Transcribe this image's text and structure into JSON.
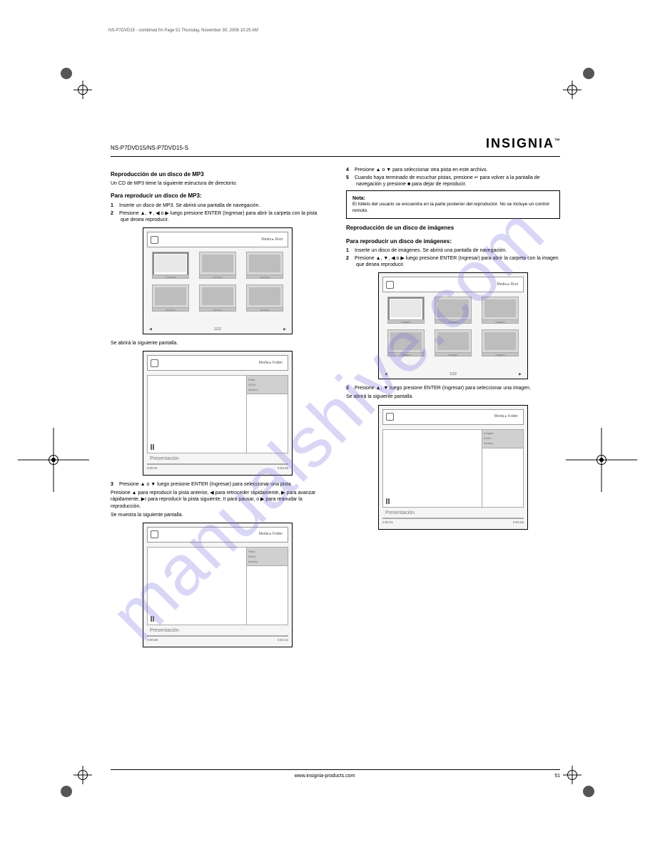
{
  "header": {
    "model": "NS-P7DVD15/NS-P7DVD15-S",
    "brand": "INSIGNIA",
    "tm": "™"
  },
  "topnotes": {
    "file": "NS-P7DVD15 - combined.fm  Page 51  Thursday, November 30, 2006  10:25 AM",
    "right": ""
  },
  "L": {
    "s1h": "Reproducción de un disco de MP3",
    "s1p1": "Un CD de MP3 tiene la siguiente estructura de directorio:",
    "s1t": "Para reproducir un disco de MP3:",
    "s1n1a": "Inserte un disco de MP3. Se abrirá una pantalla de navegación.",
    "s1n1b": "Presione ▲, ▼, ◀ o ▶ luego presione ENTER (Ingresar) para abrir la carpeta con la pista que desea reproducir.",
    "s2p1": "Se abrirá la siguiente pantalla.",
    "s2h": "",
    "s2n3": "Presione ▲ o ▼ luego presione ENTER (Ingresar) para seleccionar una pista.",
    "s2p2": "Presione ▲ para reproducir la pista anterior, ◀ para retroceder rápidamente, ▶ para avanzar rápidamente, ▶I para reproducir la pista siguiente, II para pausar, o ▶ para reanudar la reproducción.",
    "s2p3": "Se muestra la siguiente pantalla."
  },
  "R": {
    "s3n4": "Presione ▲ o ▼ para seleccionar otra pista en este archivo.",
    "s3n5": "Cuando haya terminado de escuchar pistas, presione ↵ para volver a la pantalla de navegación y presione ■ para dejar de reproducir.",
    "notelabel": "Nota:",
    "note": "El folleto del usuario se encuentra en la parte posterior del reproductor. No se incluye un control remoto.",
    "s4h": "Reproducción de un disco de imágenes",
    "s4t": "Para reproducir un disco de imágenes:",
    "s4n1a": "Inserte un disco de imágenes. Se abrirá una pantalla de navegación.",
    "s4n1b": "Presione ▲, ▼, ◀ o ▶ luego presione ENTER (Ingresar) para abrir la carpeta con la imagen que desea reproducir.",
    "s4n3": "Presione ▲, ▼ luego presione ENTER (Ingresar) para seleccionar una imagen.",
    "s4p1": "Se abrirá la siguiente pantalla."
  },
  "panel1": {
    "toolbar_label": "Media ▸ Root",
    "pager_left": "◀",
    "pager_right": "▶",
    "pager_mid": "1/22",
    "thumbs": [
      {
        "label": "Carpeta",
        "sel": true
      },
      {
        "label": "Archivo",
        "sel": false
      },
      {
        "label": "Archivo",
        "sel": false
      },
      {
        "label": "Archivo",
        "sel": false
      },
      {
        "label": "Archivo",
        "sel": false
      },
      {
        "label": "Archivo",
        "sel": false
      }
    ]
  },
  "panel2": {
    "toolbar_label": "Media ▸ Folder",
    "meta_lines": [
      "Pista:",
      "02/24",
      "Archivo"
    ],
    "time_left": "0:00:21",
    "time_right": "0:04:45",
    "progress_pct": 22,
    "slide_label": "Presentación"
  },
  "panel3": {
    "toolbar_label": "Media ▸ Folder",
    "meta_lines": [
      "Pista:",
      "03/24",
      "Archivo"
    ],
    "time_left": "0:00:38",
    "time_right": "0:04:12",
    "progress_pct": 22,
    "slide_label": "Presentación"
  },
  "panelR1": {
    "toolbar_label": "Media ▸ Root",
    "pager_left": "◀",
    "pager_right": "▶",
    "pager_mid": "1/22",
    "thumbs": [
      {
        "label": "Imagen",
        "sel": true
      },
      {
        "label": "Imagen",
        "sel": false
      },
      {
        "label": "Imagen",
        "sel": false
      },
      {
        "label": "Imagen",
        "sel": false
      },
      {
        "label": "Imagen",
        "sel": false
      },
      {
        "label": "Imagen",
        "sel": false
      }
    ]
  },
  "panelR2": {
    "toolbar_label": "Media ▸ Folder",
    "meta_lines": [
      "Imagen:",
      "02/24",
      "Archivo"
    ],
    "time_left": "0:00:21",
    "time_right": "0:04:45",
    "progress_pct": 22,
    "slide_label": "Presentación"
  },
  "footer": {
    "url": "www.insignia-products.com",
    "page": "51"
  }
}
